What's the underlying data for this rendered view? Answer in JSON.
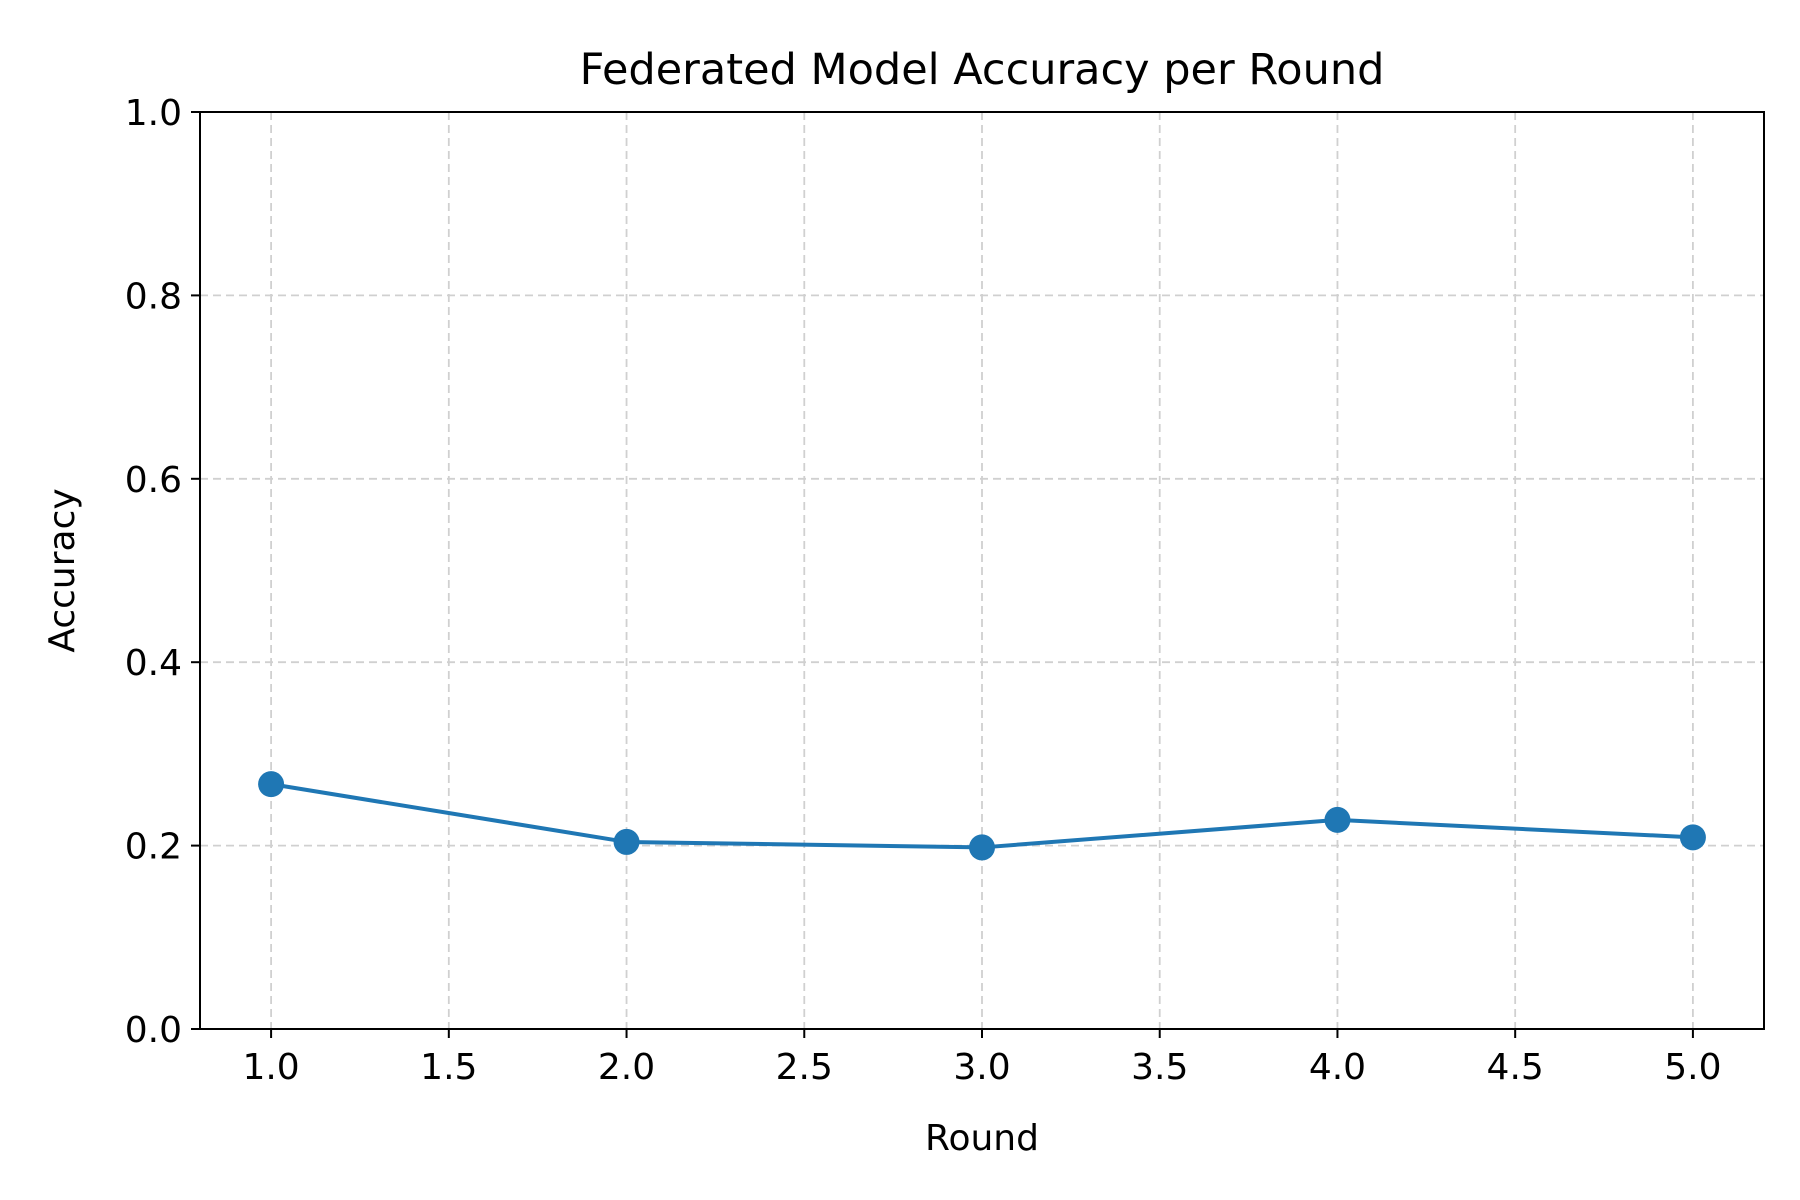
{
  "chart_data": {
    "type": "line",
    "title": "Federated Model Accuracy per Round",
    "xlabel": "Round",
    "ylabel": "Accuracy",
    "xlim": [
      0.8,
      5.2
    ],
    "ylim": [
      0.0,
      1.0
    ],
    "xticks": [
      "1.0",
      "1.5",
      "2.0",
      "2.5",
      "3.0",
      "3.5",
      "4.0",
      "4.5",
      "5.0"
    ],
    "xtick_values": [
      1.0,
      1.5,
      2.0,
      2.5,
      3.0,
      3.5,
      4.0,
      4.5,
      5.0
    ],
    "yticks": [
      "0.0",
      "0.2",
      "0.4",
      "0.6",
      "0.8",
      "1.0"
    ],
    "ytick_values": [
      0.0,
      0.2,
      0.4,
      0.6,
      0.8,
      1.0
    ],
    "grid": true,
    "series": [
      {
        "color": "#1f77b4",
        "marker": "circle",
        "x": [
          1,
          2,
          3,
          4,
          5
        ],
        "y": [
          0.267,
          0.204,
          0.198,
          0.228,
          0.209
        ]
      }
    ]
  }
}
